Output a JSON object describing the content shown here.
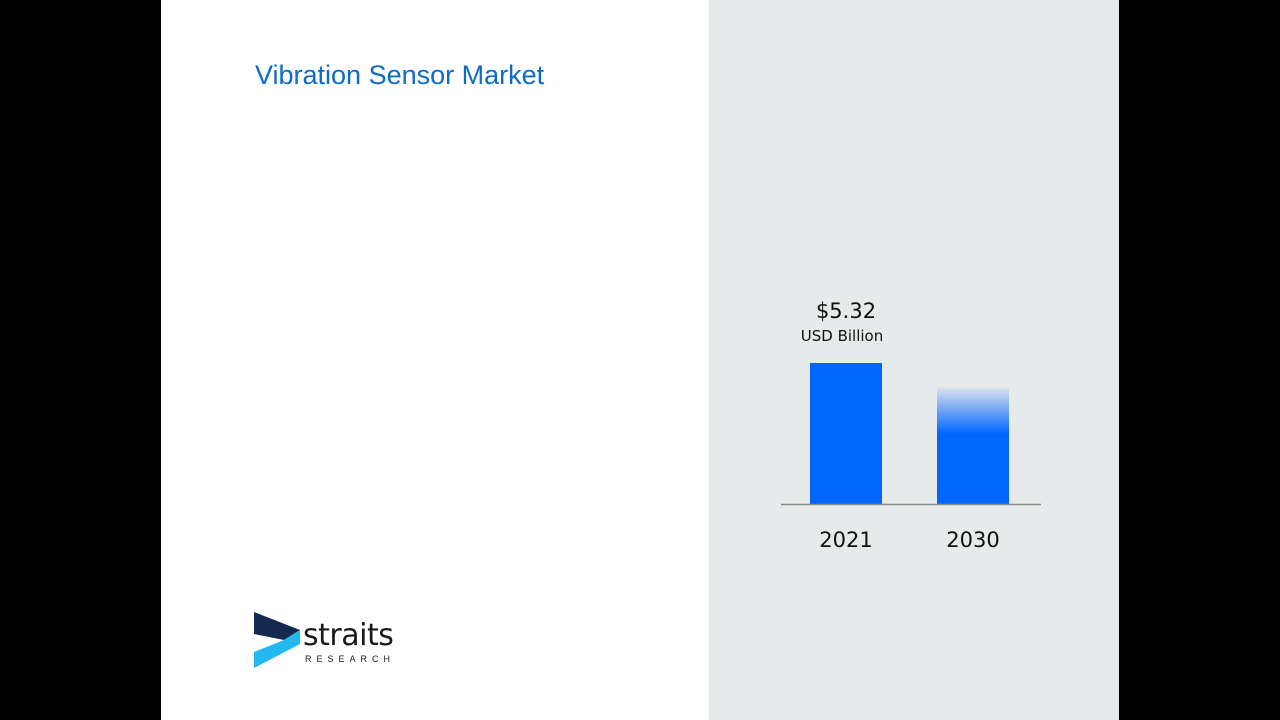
{
  "title": "Vibration Sensor Market",
  "logo": {
    "word": "straits",
    "sub": "RESEARCH"
  },
  "colors": {
    "bar": "#0066ff",
    "title": "#0b6bc8",
    "panel": "#e7eaeb"
  },
  "chart_data": {
    "type": "bar",
    "categories": [
      "2021",
      "2030"
    ],
    "values": [
      5.32,
      4.4
    ],
    "value_label": "$5.32",
    "unit_label": "USD Billion",
    "title": "",
    "xlabel": "",
    "ylabel": "",
    "ylim": [
      0,
      5.32
    ],
    "grid": false
  }
}
